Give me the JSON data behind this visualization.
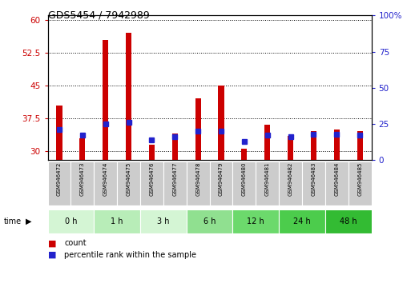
{
  "title": "GDS5454 / 7942989",
  "samples": [
    "GSM946472",
    "GSM946473",
    "GSM946474",
    "GSM946475",
    "GSM946476",
    "GSM946477",
    "GSM946478",
    "GSM946479",
    "GSM946480",
    "GSM946481",
    "GSM946482",
    "GSM946483",
    "GSM946484",
    "GSM946485"
  ],
  "count_values": [
    40.5,
    33.0,
    55.5,
    57.0,
    31.5,
    34.0,
    42.0,
    45.0,
    30.5,
    36.0,
    33.5,
    34.5,
    35.0,
    34.5
  ],
  "percentile_values": [
    21,
    17,
    25,
    26,
    14,
    16,
    20,
    20,
    13,
    17,
    16,
    18,
    18,
    17
  ],
  "time_groups": [
    {
      "label": "0 h",
      "start": 0,
      "end": 2,
      "color": "#d4f5d4"
    },
    {
      "label": "1 h",
      "start": 2,
      "end": 4,
      "color": "#b8edb8"
    },
    {
      "label": "3 h",
      "start": 4,
      "end": 6,
      "color": "#d4f5d4"
    },
    {
      "label": "6 h",
      "start": 6,
      "end": 8,
      "color": "#90e090"
    },
    {
      "label": "12 h",
      "start": 8,
      "end": 10,
      "color": "#6cd96c"
    },
    {
      "label": "24 h",
      "start": 10,
      "end": 12,
      "color": "#4ccc4c"
    },
    {
      "label": "48 h",
      "start": 12,
      "end": 14,
      "color": "#33bb33"
    }
  ],
  "ylim_left": [
    28,
    61
  ],
  "ylim_right": [
    0,
    100
  ],
  "yticks_left": [
    30,
    37.5,
    45,
    52.5,
    60
  ],
  "yticks_right": [
    0,
    25,
    50,
    75,
    100
  ],
  "bar_color_red": "#cc0000",
  "bar_color_blue": "#2222cc",
  "bg_color": "#ffffff",
  "legend_count": "count",
  "legend_pct": "percentile rank within the sample",
  "bar_width": 0.25
}
